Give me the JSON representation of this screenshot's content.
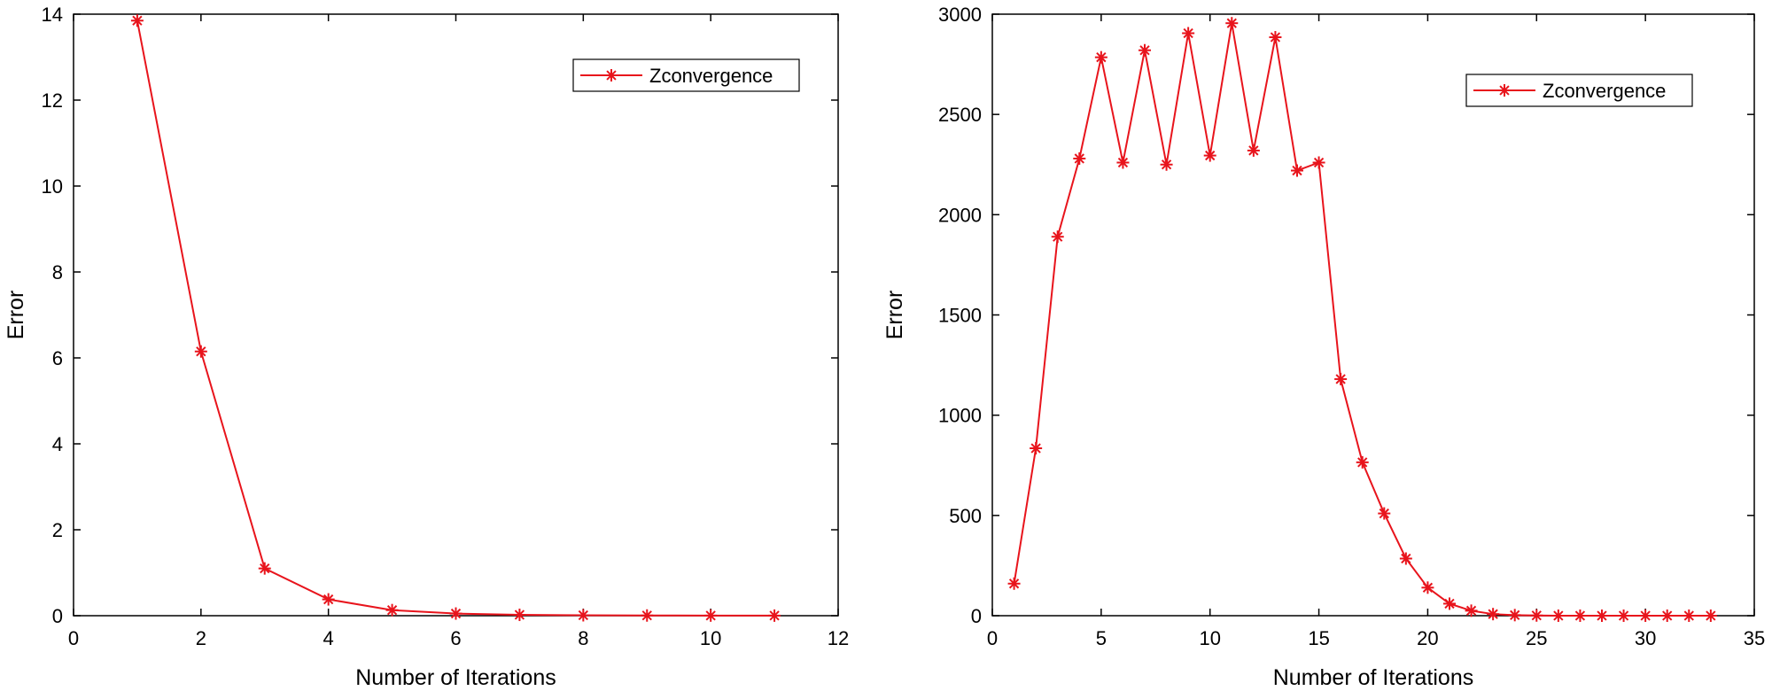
{
  "chart_data": [
    {
      "type": "line",
      "xlabel": "Number of Iterations",
      "ylabel": "Error",
      "xlim": [
        0,
        12
      ],
      "ylim": [
        0,
        14
      ],
      "xticks": [
        0,
        2,
        4,
        6,
        8,
        10,
        12
      ],
      "yticks": [
        0,
        2,
        4,
        6,
        8,
        10,
        12,
        14
      ],
      "grid": false,
      "legend_position": "top-right",
      "series": [
        {
          "name": "Zconvergence",
          "color": "#e8141c",
          "marker": "asterisk",
          "x": [
            1,
            2,
            3,
            4,
            5,
            6,
            7,
            8,
            9,
            10,
            11
          ],
          "values": [
            13.85,
            6.15,
            1.1,
            0.38,
            0.13,
            0.05,
            0.02,
            0.01,
            0.005,
            0.003,
            0.002
          ]
        }
      ]
    },
    {
      "type": "line",
      "xlabel": "Number of Iterations",
      "ylabel": "Error",
      "xlim": [
        0,
        35
      ],
      "ylim": [
        0,
        3000
      ],
      "xticks": [
        0,
        5,
        10,
        15,
        20,
        25,
        30,
        35
      ],
      "yticks": [
        0,
        500,
        1000,
        1500,
        2000,
        2500,
        3000
      ],
      "grid": false,
      "legend_position": "top-right",
      "series": [
        {
          "name": "Zconvergence",
          "color": "#e8141c",
          "marker": "asterisk",
          "x": [
            1,
            2,
            3,
            4,
            5,
            6,
            7,
            8,
            9,
            10,
            11,
            12,
            13,
            14,
            15,
            16,
            17,
            18,
            19,
            20,
            21,
            22,
            23,
            24,
            25,
            26,
            27,
            28,
            29,
            30,
            31,
            32,
            33
          ],
          "values": [
            160,
            835,
            1890,
            2280,
            2785,
            2260,
            2820,
            2250,
            2905,
            2295,
            2955,
            2320,
            2885,
            2220,
            2260,
            1180,
            765,
            510,
            285,
            140,
            60,
            25,
            8,
            3,
            1,
            0,
            0,
            0,
            0,
            0,
            0,
            0,
            0
          ]
        }
      ]
    }
  ]
}
